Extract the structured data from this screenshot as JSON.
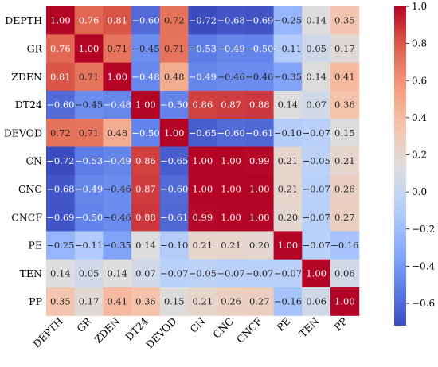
{
  "chart_data": {
    "type": "heatmap",
    "title": "",
    "xlabel": "",
    "ylabel": "",
    "labels": [
      "DEPTH",
      "GR",
      "ZDEN",
      "DT24",
      "DEVOD",
      "CN",
      "CNC",
      "CNCF",
      "PE",
      "TEN",
      "PP"
    ],
    "matrix": [
      [
        1.0,
        0.76,
        0.81,
        -0.6,
        0.72,
        -0.72,
        -0.68,
        -0.69,
        -0.25,
        0.14,
        0.35
      ],
      [
        0.76,
        1.0,
        0.71,
        -0.45,
        0.71,
        -0.53,
        -0.49,
        -0.5,
        -0.11,
        0.05,
        0.17
      ],
      [
        0.81,
        0.71,
        1.0,
        -0.48,
        0.48,
        -0.49,
        -0.46,
        -0.46,
        -0.35,
        0.14,
        0.41
      ],
      [
        -0.6,
        -0.45,
        -0.48,
        1.0,
        -0.5,
        0.86,
        0.87,
        0.88,
        0.14,
        0.07,
        0.36
      ],
      [
        0.72,
        0.71,
        0.48,
        -0.5,
        1.0,
        -0.65,
        -0.6,
        -0.61,
        -0.1,
        -0.07,
        0.15
      ],
      [
        -0.72,
        -0.53,
        -0.49,
        0.86,
        -0.65,
        1.0,
        1.0,
        0.99,
        0.21,
        -0.05,
        0.21
      ],
      [
        -0.68,
        -0.49,
        -0.46,
        0.87,
        -0.6,
        1.0,
        1.0,
        1.0,
        0.21,
        -0.07,
        0.26
      ],
      [
        -0.69,
        -0.5,
        -0.46,
        0.88,
        -0.61,
        0.99,
        1.0,
        1.0,
        0.2,
        -0.07,
        0.27
      ],
      [
        -0.25,
        -0.11,
        -0.35,
        0.14,
        -0.1,
        0.21,
        0.21,
        0.2,
        1.0,
        -0.07,
        -0.16
      ],
      [
        0.14,
        0.05,
        0.14,
        0.07,
        -0.07,
        -0.05,
        -0.07,
        -0.07,
        -0.07,
        1.0,
        0.06
      ],
      [
        0.35,
        0.17,
        0.41,
        0.36,
        0.15,
        0.21,
        0.26,
        0.27,
        -0.16,
        0.06,
        1.0
      ]
    ],
    "value_format": "2 decimals",
    "colormap": "coolwarm",
    "color_range": [
      -0.72,
      1.0
    ],
    "colorbar_ticks": [
      "1.0",
      "0.8",
      "0.6",
      "0.4",
      "0.2",
      "0.0",
      "−0.2",
      "−0.4",
      "−0.6"
    ],
    "colorbar_tick_values": [
      1.0,
      0.8,
      0.6,
      0.4,
      0.2,
      0.0,
      -0.2,
      -0.4,
      -0.6
    ],
    "legend": "colorbar-right",
    "grid": false
  }
}
